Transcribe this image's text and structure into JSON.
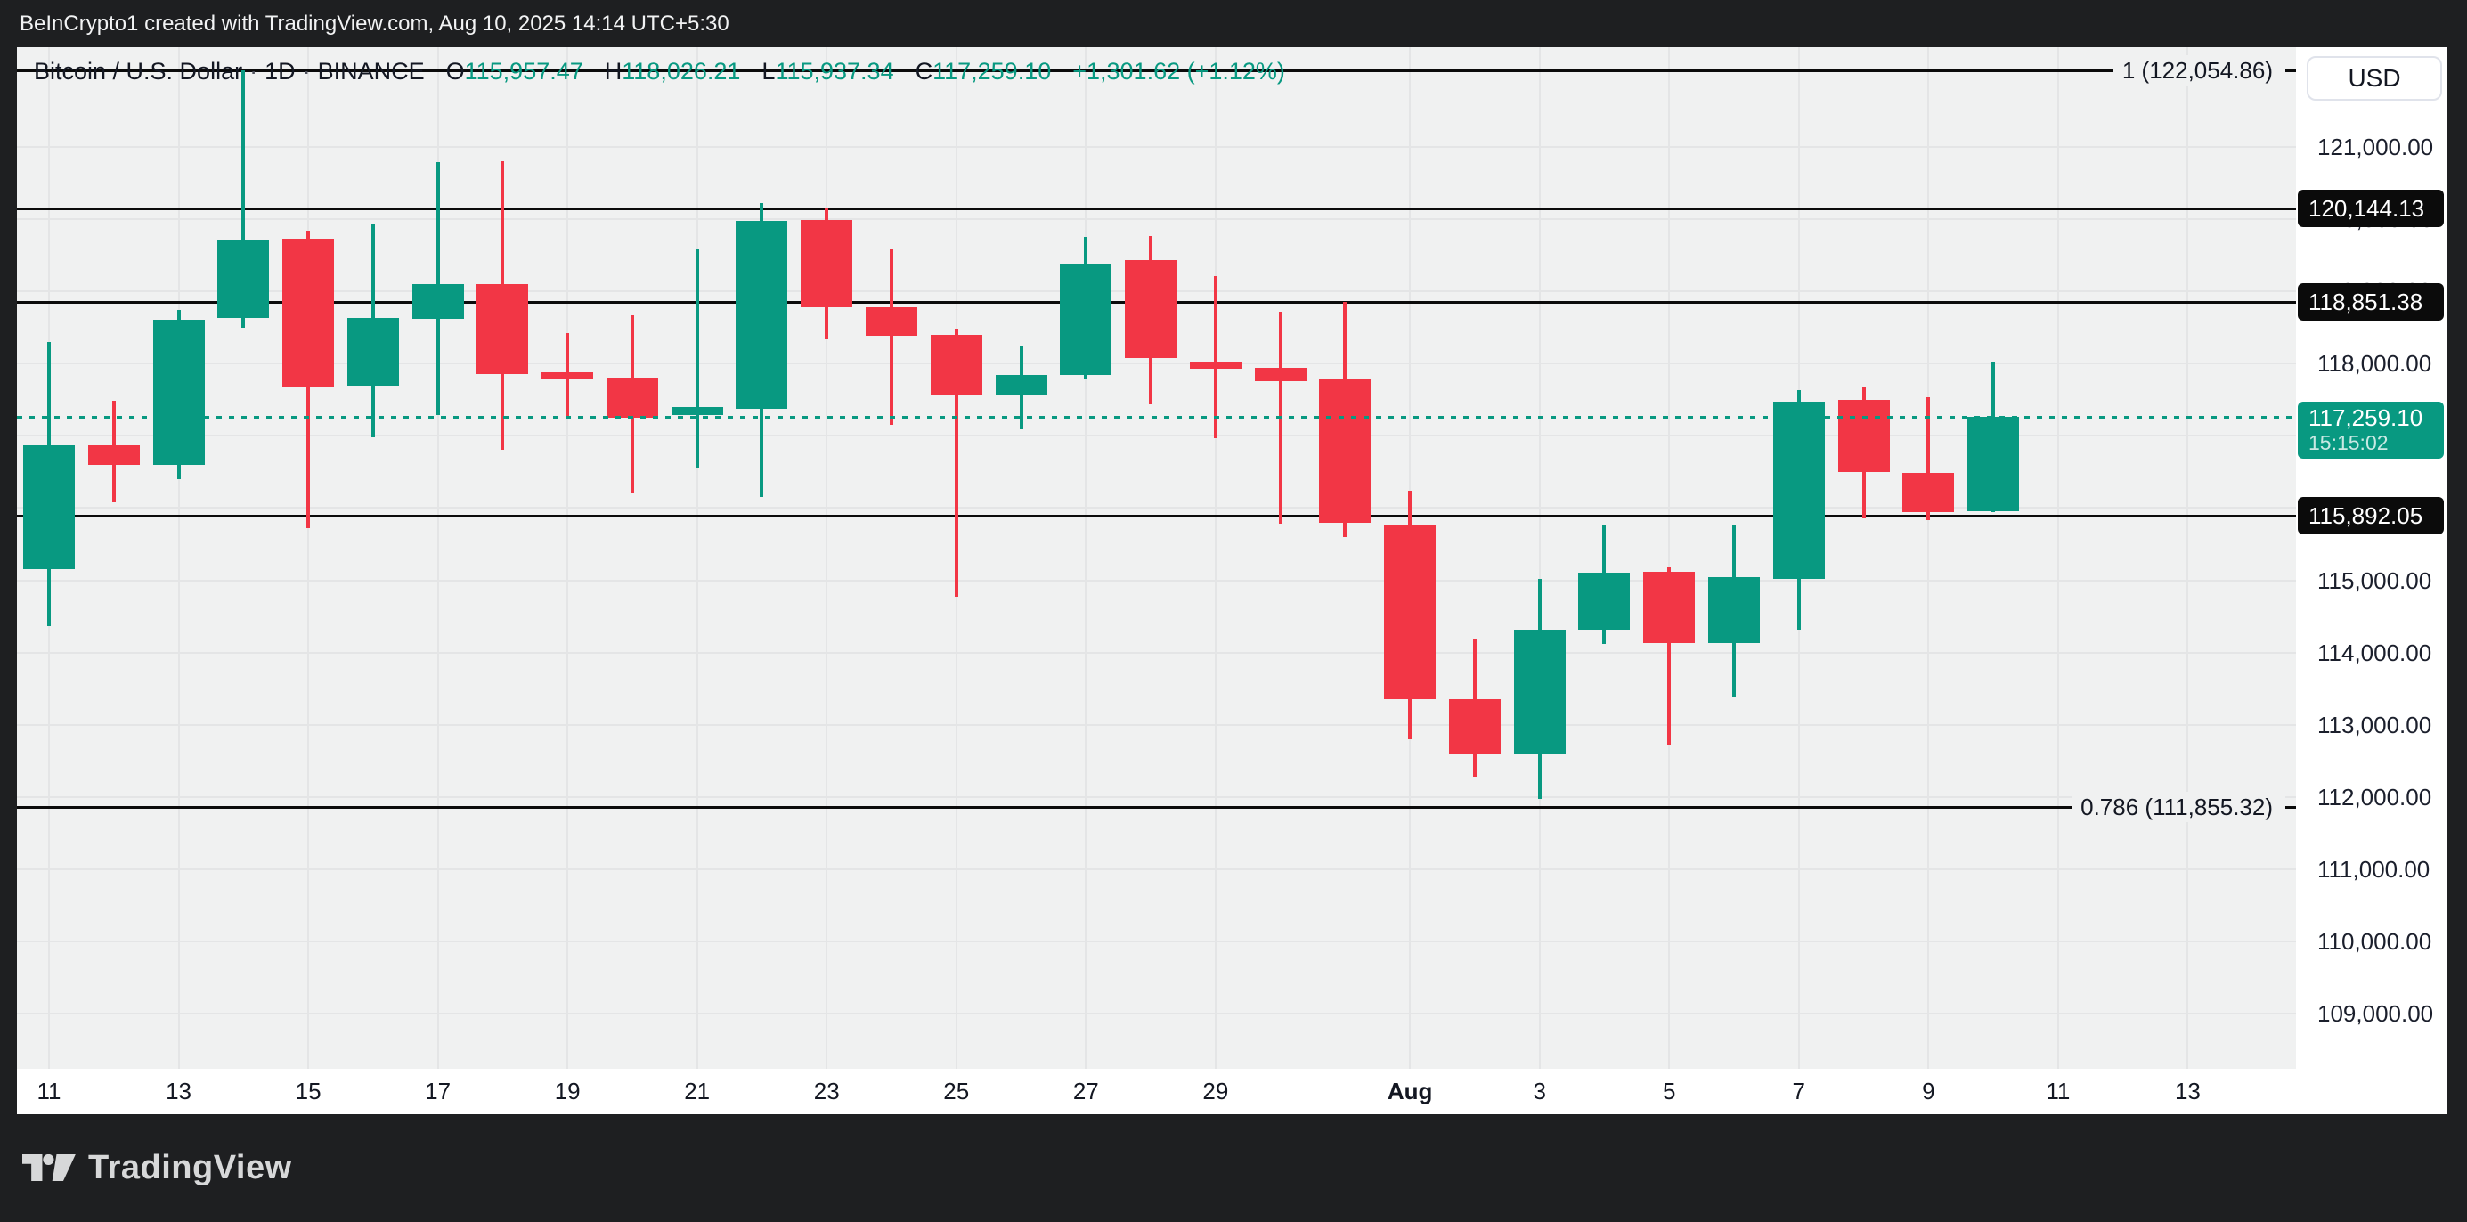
{
  "top_bar": {
    "text": "BeInCrypto1 created with TradingView.com, Aug 10, 2025 14:14 UTC+5:30"
  },
  "legend": {
    "symbol": "Bitcoin / U.S. Dollar",
    "separator": "·",
    "interval": "1D",
    "exchange": "BINANCE",
    "o_label": "O",
    "o_value": "115,957.47",
    "h_label": "H",
    "h_value": "118,026.21",
    "l_label": "L",
    "l_value": "115,937.34",
    "c_label": "C",
    "c_value": "117,259.10",
    "change": "+1,301.62 (+1.12%)"
  },
  "price_axis": {
    "currency": "USD",
    "ticks": [
      {
        "label": "121,000.00",
        "value": 121000
      },
      {
        "label": "120,000.00",
        "value": 120000
      },
      {
        "label": "119,000.00",
        "value": 119000
      },
      {
        "label": "118,000.00",
        "value": 118000
      },
      {
        "label": "117,000.00",
        "value": 117000
      },
      {
        "label": "116,000.00",
        "value": 116000
      },
      {
        "label": "115,000.00",
        "value": 115000
      },
      {
        "label": "114,000.00",
        "value": 114000
      },
      {
        "label": "113,000.00",
        "value": 113000
      },
      {
        "label": "112,000.00",
        "value": 112000
      },
      {
        "label": "111,000.00",
        "value": 111000
      },
      {
        "label": "110,000.00",
        "value": 110000
      },
      {
        "label": "109,000.00",
        "value": 109000
      }
    ]
  },
  "levels": {
    "fib_high": {
      "label": "1 (122,054.86)",
      "value": 122054.86
    },
    "line_upper": {
      "label": "120,144.13",
      "value": 120144.13
    },
    "line_mid": {
      "label": "118,851.38",
      "value": 118851.38
    },
    "line_lower": {
      "label": "115,892.05",
      "value": 115892.05
    },
    "fib_low": {
      "label": "0.786 (111,855.32)",
      "value": 111855.32
    },
    "current": {
      "label": "117,259.10",
      "time": "15:15:02",
      "value": 117259.1
    }
  },
  "time_axis": {
    "labels": [
      {
        "text": "11",
        "i": 0
      },
      {
        "text": "13",
        "i": 2
      },
      {
        "text": "15",
        "i": 4
      },
      {
        "text": "17",
        "i": 6
      },
      {
        "text": "19",
        "i": 8
      },
      {
        "text": "21",
        "i": 10
      },
      {
        "text": "23",
        "i": 12
      },
      {
        "text": "25",
        "i": 14
      },
      {
        "text": "27",
        "i": 16
      },
      {
        "text": "29",
        "i": 18
      },
      {
        "text": "Aug",
        "i": 21,
        "bold": true
      },
      {
        "text": "3",
        "i": 23
      },
      {
        "text": "5",
        "i": 25
      },
      {
        "text": "7",
        "i": 27
      },
      {
        "text": "9",
        "i": 29
      },
      {
        "text": "11",
        "i": 31
      },
      {
        "text": "13",
        "i": 33
      }
    ]
  },
  "footer": {
    "brand": "TradingView"
  },
  "colors": {
    "up": "#089981",
    "down": "#f23645",
    "level_line": "#0b0b0b",
    "grid": "#e4e5e6",
    "plot_bg": "#f0f1f1",
    "chrome_bg": "#1e1f21",
    "text_dark": "#131722",
    "badge_bg": "#0b0b0b",
    "current_badge_bg": "#089981"
  },
  "chart_data": {
    "type": "candlestick",
    "title": "Bitcoin / U.S. Dollar, 1D, BINANCE",
    "ylabel": "USD",
    "ylim": [
      108500,
      122500
    ],
    "grid": true,
    "dates": [
      "Jul 11",
      "Jul 12",
      "Jul 13",
      "Jul 14",
      "Jul 15",
      "Jul 16",
      "Jul 17",
      "Jul 18",
      "Jul 19",
      "Jul 20",
      "Jul 21",
      "Jul 22",
      "Jul 23",
      "Jul 24",
      "Jul 25",
      "Jul 26",
      "Jul 27",
      "Jul 28",
      "Jul 29",
      "Jul 30",
      "Jul 31",
      "Aug 1",
      "Aug 2",
      "Aug 3",
      "Aug 4",
      "Aug 5",
      "Aug 6",
      "Aug 7",
      "Aug 8",
      "Aug 9",
      "Aug 10"
    ],
    "open": [
      115150,
      116870,
      116600,
      118630,
      119730,
      117700,
      118620,
      119100,
      117880,
      117810,
      117290,
      117380,
      119990,
      118780,
      118400,
      117560,
      117840,
      119430,
      118030,
      117940,
      117790,
      115770,
      113350,
      112590,
      114320,
      115120,
      114130,
      115020,
      117500,
      116490,
      115957.47
    ],
    "high": [
      118300,
      117480,
      118740,
      122055,
      119840,
      119930,
      120790,
      120800,
      118420,
      118670,
      119580,
      120220,
      120144,
      119580,
      118490,
      118240,
      119755,
      119770,
      119210,
      118720,
      118855,
      116240,
      114190,
      115020,
      115770,
      115180,
      115760,
      117630,
      117670,
      117540,
      118026.21
    ],
    "low": [
      114360,
      116080,
      116400,
      118500,
      115720,
      116980,
      117290,
      116810,
      117250,
      116200,
      116550,
      116150,
      118340,
      117150,
      114770,
      117090,
      117780,
      117440,
      116970,
      115780,
      115600,
      112800,
      112280,
      111970,
      114120,
      112710,
      113380,
      114320,
      115860,
      115830,
      115937.34
    ],
    "close": [
      116870,
      116600,
      118610,
      119710,
      117670,
      118630,
      119100,
      117860,
      117790,
      117250,
      117400,
      119980,
      118780,
      118390,
      117570,
      117840,
      119385,
      118080,
      117930,
      117760,
      115800,
      113350,
      112590,
      114320,
      115110,
      114130,
      115040,
      117470,
      116500,
      115940,
      117259.1
    ],
    "annotations": [
      {
        "text": "1 (122,054.86)",
        "y": 122054.86
      },
      {
        "text": "0.786 (111,855.32)",
        "y": 111855.32
      },
      {
        "text": "120,144.13",
        "y": 120144.13
      },
      {
        "text": "118,851.38",
        "y": 118851.38
      },
      {
        "text": "115,892.05",
        "y": 115892.05
      },
      {
        "text": "last price 117,259.10 at 15:15:02",
        "y": 117259.1
      }
    ]
  }
}
